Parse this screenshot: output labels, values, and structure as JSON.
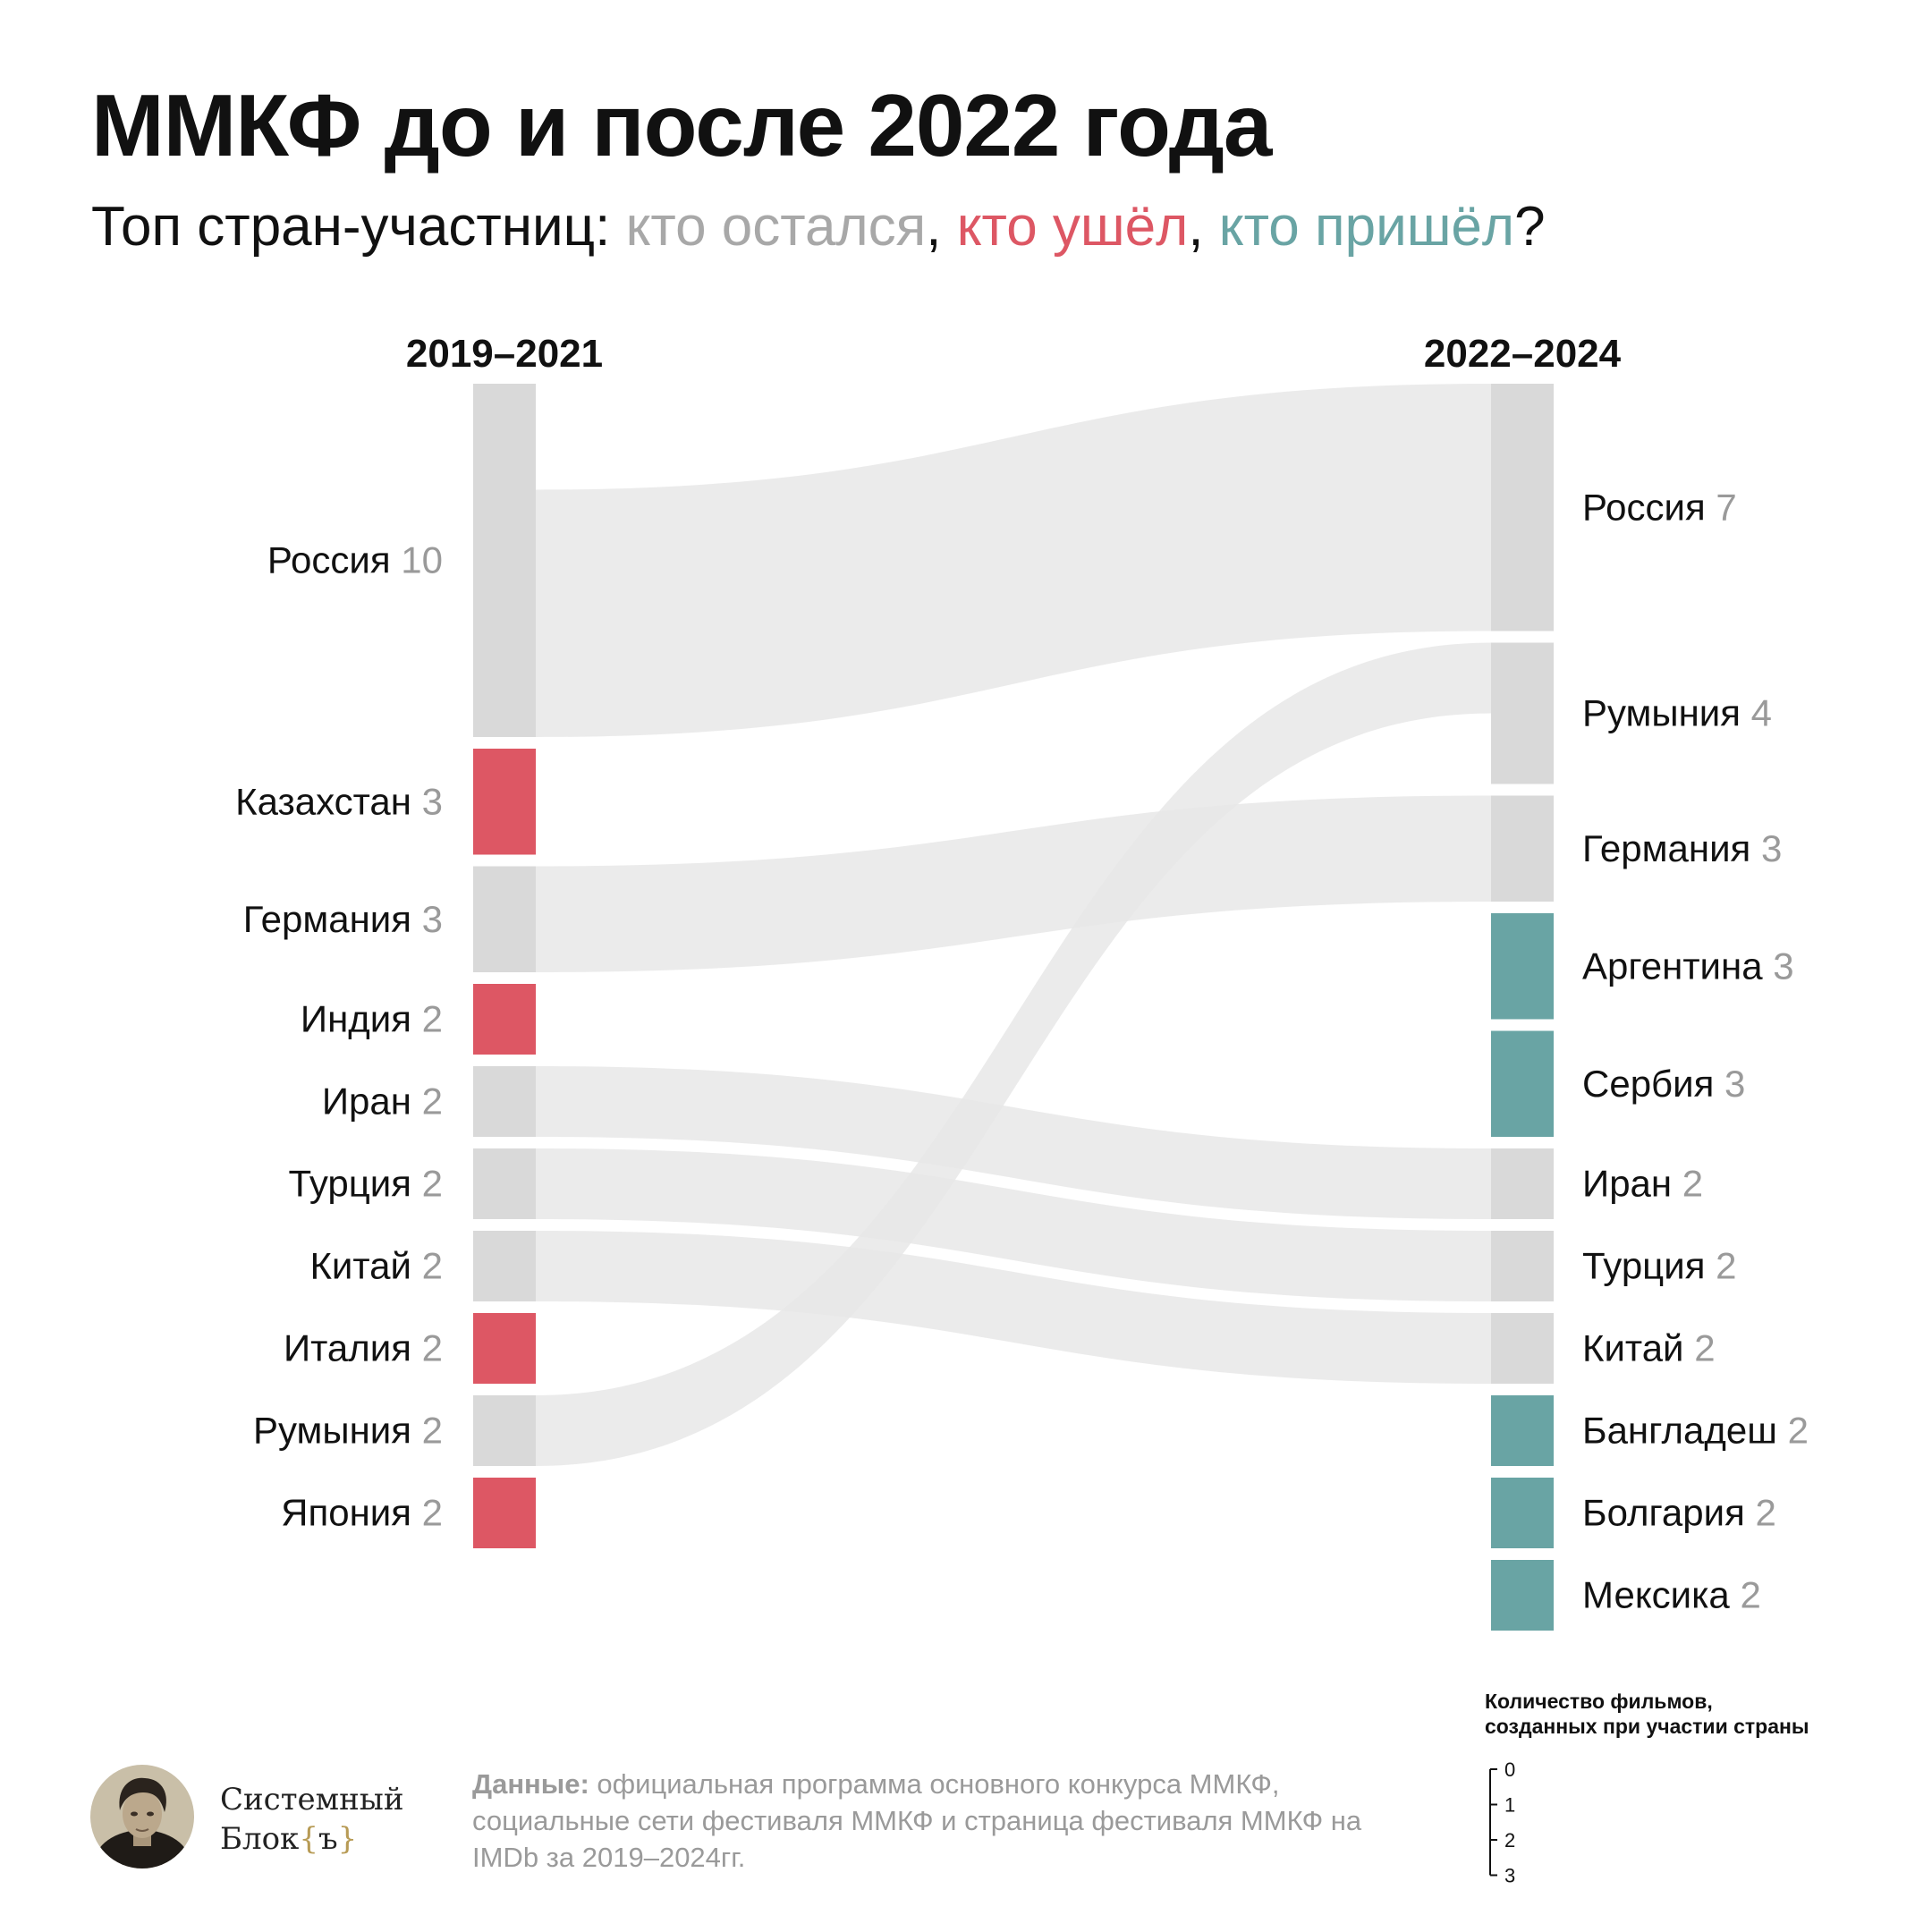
{
  "header": {
    "title": "ММКФ до и после 2022 года",
    "subtitle_prefix": "Топ стран-участниц: ",
    "subtitle_stayed": "кто остался",
    "subtitle_sep1": ", ",
    "subtitle_left": "кто ушёл",
    "subtitle_sep2": ", ",
    "subtitle_came": "кто пришёл",
    "subtitle_end": "?"
  },
  "colors": {
    "stayed": "#d9d9d9",
    "left": "#dd5764",
    "came": "#69a4a4",
    "link": "#e6e6e6",
    "value_text": "#9a9a9a"
  },
  "chart_data": {
    "type": "sankey",
    "columns": [
      "2019–2021",
      "2022–2024"
    ],
    "left": [
      {
        "name": "Россия",
        "value": 10,
        "status": "stayed"
      },
      {
        "name": "Казахстан",
        "value": 3,
        "status": "left"
      },
      {
        "name": "Германия",
        "value": 3,
        "status": "stayed"
      },
      {
        "name": "Индия",
        "value": 2,
        "status": "left"
      },
      {
        "name": "Иран",
        "value": 2,
        "status": "stayed"
      },
      {
        "name": "Турция",
        "value": 2,
        "status": "stayed"
      },
      {
        "name": "Китай",
        "value": 2,
        "status": "stayed"
      },
      {
        "name": "Италия",
        "value": 2,
        "status": "left"
      },
      {
        "name": "Румыния",
        "value": 2,
        "status": "stayed"
      },
      {
        "name": "Япония",
        "value": 2,
        "status": "left"
      }
    ],
    "right": [
      {
        "name": "Россия",
        "value": 7,
        "status": "stayed"
      },
      {
        "name": "Румыния",
        "value": 4,
        "status": "stayed"
      },
      {
        "name": "Германия",
        "value": 3,
        "status": "stayed"
      },
      {
        "name": "Аргентина",
        "value": 3,
        "status": "came"
      },
      {
        "name": "Сербия",
        "value": 3,
        "status": "came"
      },
      {
        "name": "Иран",
        "value": 2,
        "status": "stayed"
      },
      {
        "name": "Турция",
        "value": 2,
        "status": "stayed"
      },
      {
        "name": "Китай",
        "value": 2,
        "status": "stayed"
      },
      {
        "name": "Бангладеш",
        "value": 2,
        "status": "came"
      },
      {
        "name": "Болгария",
        "value": 2,
        "status": "came"
      },
      {
        "name": "Мексика",
        "value": 2,
        "status": "came"
      }
    ],
    "links": [
      {
        "source": "Россия",
        "target": "Россия"
      },
      {
        "source": "Германия",
        "target": "Германия"
      },
      {
        "source": "Иран",
        "target": "Иран"
      },
      {
        "source": "Турция",
        "target": "Турция"
      },
      {
        "source": "Китай",
        "target": "Китай"
      },
      {
        "source": "Румыния",
        "target": "Румыния"
      }
    ],
    "legend": {
      "title_line1": "Количество фильмов,",
      "title_line2": "созданных при участии страны",
      "ticks": [
        0,
        1,
        2,
        3
      ],
      "placement": "bottom-right"
    }
  },
  "footer": {
    "brand_line1": "Системный",
    "brand_line2": "Блок",
    "brand_brace_open": "{",
    "brand_letter": "ъ",
    "brand_brace_close": "}",
    "source_label": "Данные:",
    "source_text": " официальная программа основного конкурса ММКФ, социальные сети фестиваля ММКФ и страница фестиваля ММКФ на IMDb за 2019–2024гг."
  }
}
